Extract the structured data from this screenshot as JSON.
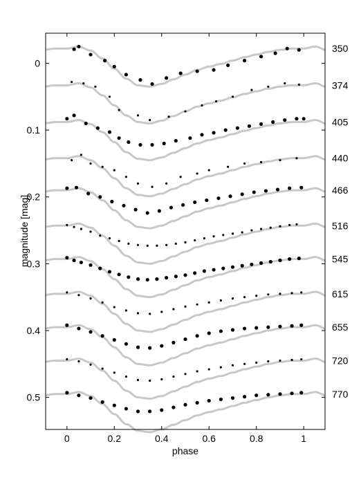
{
  "chart_data": {
    "type": "scatter",
    "xlabel": "phase",
    "ylabel": "magnitude  [mag]",
    "xlim": [
      -0.09,
      1.09
    ],
    "ylim": [
      0.548,
      -0.045
    ],
    "y_inverted": true,
    "grid": false,
    "x_ticks": [
      {
        "value": 0,
        "label": "0"
      },
      {
        "value": 0.2,
        "label": "0.2"
      },
      {
        "value": 0.4,
        "label": "0.4"
      },
      {
        "value": 0.6,
        "label": "0.6"
      },
      {
        "value": 0.8,
        "label": "0.8"
      },
      {
        "value": 1,
        "label": "1"
      }
    ],
    "y_ticks": [
      {
        "value": 0,
        "label": "0"
      },
      {
        "value": 0.1,
        "label": "0.1"
      },
      {
        "value": 0.2,
        "label": "0.2"
      },
      {
        "value": 0.3,
        "label": "0.3"
      },
      {
        "value": 0.4,
        "label": "0.4"
      },
      {
        "value": 0.5,
        "label": "0.5"
      }
    ],
    "curve_color": "#c8c8c8",
    "point_color": "#000000",
    "model_shape": {
      "phase": [
        0,
        0.05,
        0.1,
        0.15,
        0.2,
        0.25,
        0.3,
        0.35,
        0.4,
        0.45,
        0.5,
        0.55,
        0.6,
        0.65,
        0.7,
        0.75,
        0.8,
        0.85,
        0.9,
        0.95,
        1
      ],
      "delta_mag": [
        0.0,
        -0.003,
        0.003,
        0.015,
        0.03,
        0.045,
        0.055,
        0.057,
        0.053,
        0.046,
        0.039,
        0.032,
        0.027,
        0.023,
        0.018,
        0.013,
        0.009,
        0.005,
        0.002,
        0.0,
        0.0
      ]
    },
    "series": [
      {
        "name": "350",
        "offset": -0.022,
        "points": [
          [
            0.03,
            -0.021
          ],
          [
            0.05,
            -0.025
          ],
          [
            0.1,
            -0.013
          ],
          [
            0.16,
            -0.004
          ],
          [
            0.2,
            0.005
          ],
          [
            0.25,
            0.017
          ],
          [
            0.31,
            0.025
          ],
          [
            0.36,
            0.031
          ],
          [
            0.42,
            0.022
          ],
          [
            0.48,
            0.015
          ],
          [
            0.55,
            0.012
          ],
          [
            0.62,
            0.01
          ],
          [
            0.68,
            0.003
          ],
          [
            0.75,
            -0.004
          ],
          [
            0.82,
            -0.01
          ],
          [
            0.88,
            -0.015
          ],
          [
            0.93,
            -0.022
          ],
          [
            0.98,
            -0.02
          ]
        ]
      },
      {
        "name": "374",
        "offset": 0.033,
        "points": [
          [
            0.02,
            0.028
          ],
          [
            0.07,
            0.03
          ],
          [
            0.12,
            0.035
          ],
          [
            0.18,
            0.05
          ],
          [
            0.22,
            0.07
          ],
          [
            0.3,
            0.078
          ],
          [
            0.35,
            0.085
          ],
          [
            0.43,
            0.08
          ],
          [
            0.5,
            0.072
          ],
          [
            0.57,
            0.063
          ],
          [
            0.63,
            0.057
          ],
          [
            0.7,
            0.05
          ],
          [
            0.78,
            0.04
          ],
          [
            0.85,
            0.035
          ],
          [
            0.92,
            0.03
          ],
          [
            0.98,
            0.032
          ]
        ]
      },
      {
        "name": "405",
        "offset": 0.088,
        "points": [
          [
            0.0,
            0.083
          ],
          [
            0.03,
            0.078
          ],
          [
            0.08,
            0.09
          ],
          [
            0.13,
            0.097
          ],
          [
            0.18,
            0.103
          ],
          [
            0.22,
            0.112
          ],
          [
            0.26,
            0.118
          ],
          [
            0.31,
            0.122
          ],
          [
            0.36,
            0.122
          ],
          [
            0.41,
            0.12
          ],
          [
            0.46,
            0.116
          ],
          [
            0.52,
            0.112
          ],
          [
            0.57,
            0.107
          ],
          [
            0.62,
            0.104
          ],
          [
            0.67,
            0.1
          ],
          [
            0.72,
            0.097
          ],
          [
            0.77,
            0.094
          ],
          [
            0.82,
            0.091
          ],
          [
            0.87,
            0.088
          ],
          [
            0.92,
            0.085
          ],
          [
            0.97,
            0.083
          ],
          [
            1.0,
            0.083
          ]
        ]
      },
      {
        "name": "440",
        "offset": 0.142,
        "points": [
          [
            0.02,
            0.145
          ],
          [
            0.06,
            0.137
          ],
          [
            0.1,
            0.15
          ],
          [
            0.15,
            0.155
          ],
          [
            0.2,
            0.16
          ],
          [
            0.25,
            0.17
          ],
          [
            0.3,
            0.18
          ],
          [
            0.36,
            0.185
          ],
          [
            0.42,
            0.18
          ],
          [
            0.48,
            0.17
          ],
          [
            0.55,
            0.165
          ],
          [
            0.6,
            0.16
          ],
          [
            0.68,
            0.155
          ],
          [
            0.75,
            0.15
          ],
          [
            0.82,
            0.148
          ],
          [
            0.9,
            0.145
          ],
          [
            0.97,
            0.142
          ]
        ]
      },
      {
        "name": "466",
        "offset": 0.19,
        "points": [
          [
            0.0,
            0.187
          ],
          [
            0.04,
            0.186
          ],
          [
            0.09,
            0.195
          ],
          [
            0.14,
            0.2
          ],
          [
            0.19,
            0.207
          ],
          [
            0.24,
            0.213
          ],
          [
            0.29,
            0.219
          ],
          [
            0.34,
            0.224
          ],
          [
            0.39,
            0.221
          ],
          [
            0.44,
            0.216
          ],
          [
            0.49,
            0.212
          ],
          [
            0.54,
            0.208
          ],
          [
            0.59,
            0.205
          ],
          [
            0.64,
            0.202
          ],
          [
            0.69,
            0.199
          ],
          [
            0.74,
            0.196
          ],
          [
            0.79,
            0.193
          ],
          [
            0.84,
            0.191
          ],
          [
            0.89,
            0.189
          ],
          [
            0.94,
            0.187
          ],
          [
            0.99,
            0.186
          ]
        ]
      },
      {
        "name": "516",
        "offset": 0.243,
        "points": [
          [
            0.0,
            0.242
          ],
          [
            0.03,
            0.245
          ],
          [
            0.06,
            0.248
          ],
          [
            0.1,
            0.252
          ],
          [
            0.14,
            0.258
          ],
          [
            0.18,
            0.262
          ],
          [
            0.22,
            0.266
          ],
          [
            0.26,
            0.27
          ],
          [
            0.3,
            0.272
          ],
          [
            0.34,
            0.273
          ],
          [
            0.38,
            0.273
          ],
          [
            0.42,
            0.272
          ],
          [
            0.46,
            0.27
          ],
          [
            0.5,
            0.268
          ],
          [
            0.54,
            0.265
          ],
          [
            0.58,
            0.262
          ],
          [
            0.62,
            0.259
          ],
          [
            0.66,
            0.257
          ],
          [
            0.7,
            0.255
          ],
          [
            0.74,
            0.253
          ],
          [
            0.78,
            0.25
          ],
          [
            0.82,
            0.248
          ],
          [
            0.86,
            0.246
          ],
          [
            0.9,
            0.244
          ],
          [
            0.94,
            0.242
          ],
          [
            0.97,
            0.241
          ]
        ]
      },
      {
        "name": "545",
        "offset": 0.293,
        "points": [
          [
            0.0,
            0.291
          ],
          [
            0.03,
            0.295
          ],
          [
            0.06,
            0.298
          ],
          [
            0.1,
            0.302
          ],
          [
            0.14,
            0.307
          ],
          [
            0.18,
            0.312
          ],
          [
            0.22,
            0.316
          ],
          [
            0.26,
            0.32
          ],
          [
            0.3,
            0.323
          ],
          [
            0.34,
            0.324
          ],
          [
            0.38,
            0.323
          ],
          [
            0.42,
            0.321
          ],
          [
            0.46,
            0.319
          ],
          [
            0.5,
            0.317
          ],
          [
            0.54,
            0.314
          ],
          [
            0.58,
            0.311
          ],
          [
            0.62,
            0.309
          ],
          [
            0.66,
            0.307
          ],
          [
            0.7,
            0.305
          ],
          [
            0.74,
            0.303
          ],
          [
            0.78,
            0.301
          ],
          [
            0.82,
            0.299
          ],
          [
            0.86,
            0.297
          ],
          [
            0.9,
            0.295
          ],
          [
            0.94,
            0.293
          ],
          [
            0.98,
            0.292
          ]
        ]
      },
      {
        "name": "615",
        "offset": 0.345,
        "points": [
          [
            0.0,
            0.343
          ],
          [
            0.05,
            0.347
          ],
          [
            0.1,
            0.352
          ],
          [
            0.15,
            0.358
          ],
          [
            0.2,
            0.365
          ],
          [
            0.25,
            0.37
          ],
          [
            0.3,
            0.374
          ],
          [
            0.35,
            0.375
          ],
          [
            0.4,
            0.372
          ],
          [
            0.45,
            0.368
          ],
          [
            0.5,
            0.364
          ],
          [
            0.55,
            0.361
          ],
          [
            0.6,
            0.358
          ],
          [
            0.65,
            0.355
          ],
          [
            0.7,
            0.352
          ],
          [
            0.75,
            0.35
          ],
          [
            0.8,
            0.348
          ],
          [
            0.85,
            0.346
          ],
          [
            0.9,
            0.345
          ],
          [
            0.95,
            0.344
          ],
          [
            0.99,
            0.343
          ]
        ]
      },
      {
        "name": "655",
        "offset": 0.395,
        "points": [
          [
            0.0,
            0.392
          ],
          [
            0.05,
            0.397
          ],
          [
            0.1,
            0.402
          ],
          [
            0.15,
            0.408
          ],
          [
            0.2,
            0.414
          ],
          [
            0.25,
            0.42
          ],
          [
            0.3,
            0.425
          ],
          [
            0.35,
            0.426
          ],
          [
            0.4,
            0.423
          ],
          [
            0.45,
            0.418
          ],
          [
            0.5,
            0.413
          ],
          [
            0.55,
            0.408
          ],
          [
            0.6,
            0.404
          ],
          [
            0.65,
            0.401
          ],
          [
            0.7,
            0.399
          ],
          [
            0.75,
            0.397
          ],
          [
            0.8,
            0.396
          ],
          [
            0.85,
            0.395
          ],
          [
            0.9,
            0.394
          ],
          [
            0.95,
            0.393
          ],
          [
            0.99,
            0.392
          ]
        ]
      },
      {
        "name": "720",
        "offset": 0.445,
        "points": [
          [
            0.0,
            0.443
          ],
          [
            0.05,
            0.446
          ],
          [
            0.1,
            0.451
          ],
          [
            0.15,
            0.457
          ],
          [
            0.2,
            0.463
          ],
          [
            0.25,
            0.469
          ],
          [
            0.3,
            0.474
          ],
          [
            0.35,
            0.475
          ],
          [
            0.4,
            0.473
          ],
          [
            0.45,
            0.469
          ],
          [
            0.5,
            0.465
          ],
          [
            0.55,
            0.461
          ],
          [
            0.6,
            0.458
          ],
          [
            0.65,
            0.455
          ],
          [
            0.7,
            0.452
          ],
          [
            0.75,
            0.45
          ],
          [
            0.8,
            0.448
          ],
          [
            0.85,
            0.446
          ],
          [
            0.9,
            0.445
          ],
          [
            0.95,
            0.444
          ],
          [
            0.99,
            0.443
          ]
        ]
      },
      {
        "name": "770",
        "offset": 0.495,
        "points": [
          [
            0.0,
            0.493
          ],
          [
            0.05,
            0.497
          ],
          [
            0.1,
            0.501
          ],
          [
            0.15,
            0.507
          ],
          [
            0.2,
            0.512
          ],
          [
            0.25,
            0.517
          ],
          [
            0.3,
            0.521
          ],
          [
            0.35,
            0.521
          ],
          [
            0.4,
            0.519
          ],
          [
            0.45,
            0.515
          ],
          [
            0.5,
            0.511
          ],
          [
            0.55,
            0.508
          ],
          [
            0.6,
            0.505
          ],
          [
            0.65,
            0.503
          ],
          [
            0.7,
            0.501
          ],
          [
            0.75,
            0.499
          ],
          [
            0.8,
            0.497
          ],
          [
            0.85,
            0.496
          ],
          [
            0.9,
            0.495
          ],
          [
            0.95,
            0.494
          ],
          [
            0.99,
            0.493
          ]
        ]
      }
    ]
  }
}
